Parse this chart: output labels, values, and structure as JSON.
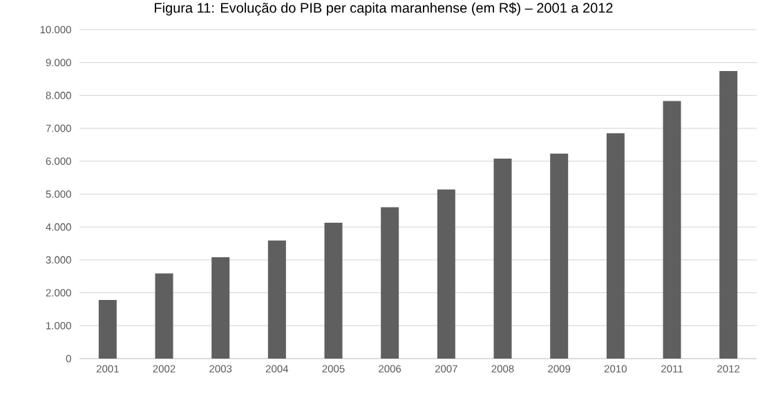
{
  "chart_data": {
    "type": "bar",
    "title": "Figura 11: Evolução do PIB per capita maranhense (em R$) – 2001 a 2012",
    "categories": [
      "2001",
      "2002",
      "2003",
      "2004",
      "2005",
      "2006",
      "2007",
      "2008",
      "2009",
      "2010",
      "2011",
      "2012"
    ],
    "values": [
      1780,
      2590,
      3080,
      3590,
      4130,
      4600,
      5140,
      6080,
      6230,
      6850,
      7830,
      8740
    ],
    "color": "#5f5f5f",
    "ylim": [
      0,
      10000
    ],
    "yticks": [
      0,
      {
        "value": 1000,
        "label": "1.000"
      },
      {
        "value": 2000,
        "label": "2.000"
      },
      {
        "value": 3000,
        "label": "3.000"
      },
      {
        "value": 4000,
        "label": "4.000"
      },
      {
        "value": 5000,
        "label": "5.000"
      },
      {
        "value": 6000,
        "label": "6.000"
      },
      {
        "value": 7000,
        "label": "7.000"
      },
      {
        "value": 8000,
        "label": "8.000"
      },
      {
        "value": 9000,
        "label": "9.000"
      },
      {
        "value": 10000,
        "label": "10.000"
      }
    ],
    "grid": "y"
  }
}
